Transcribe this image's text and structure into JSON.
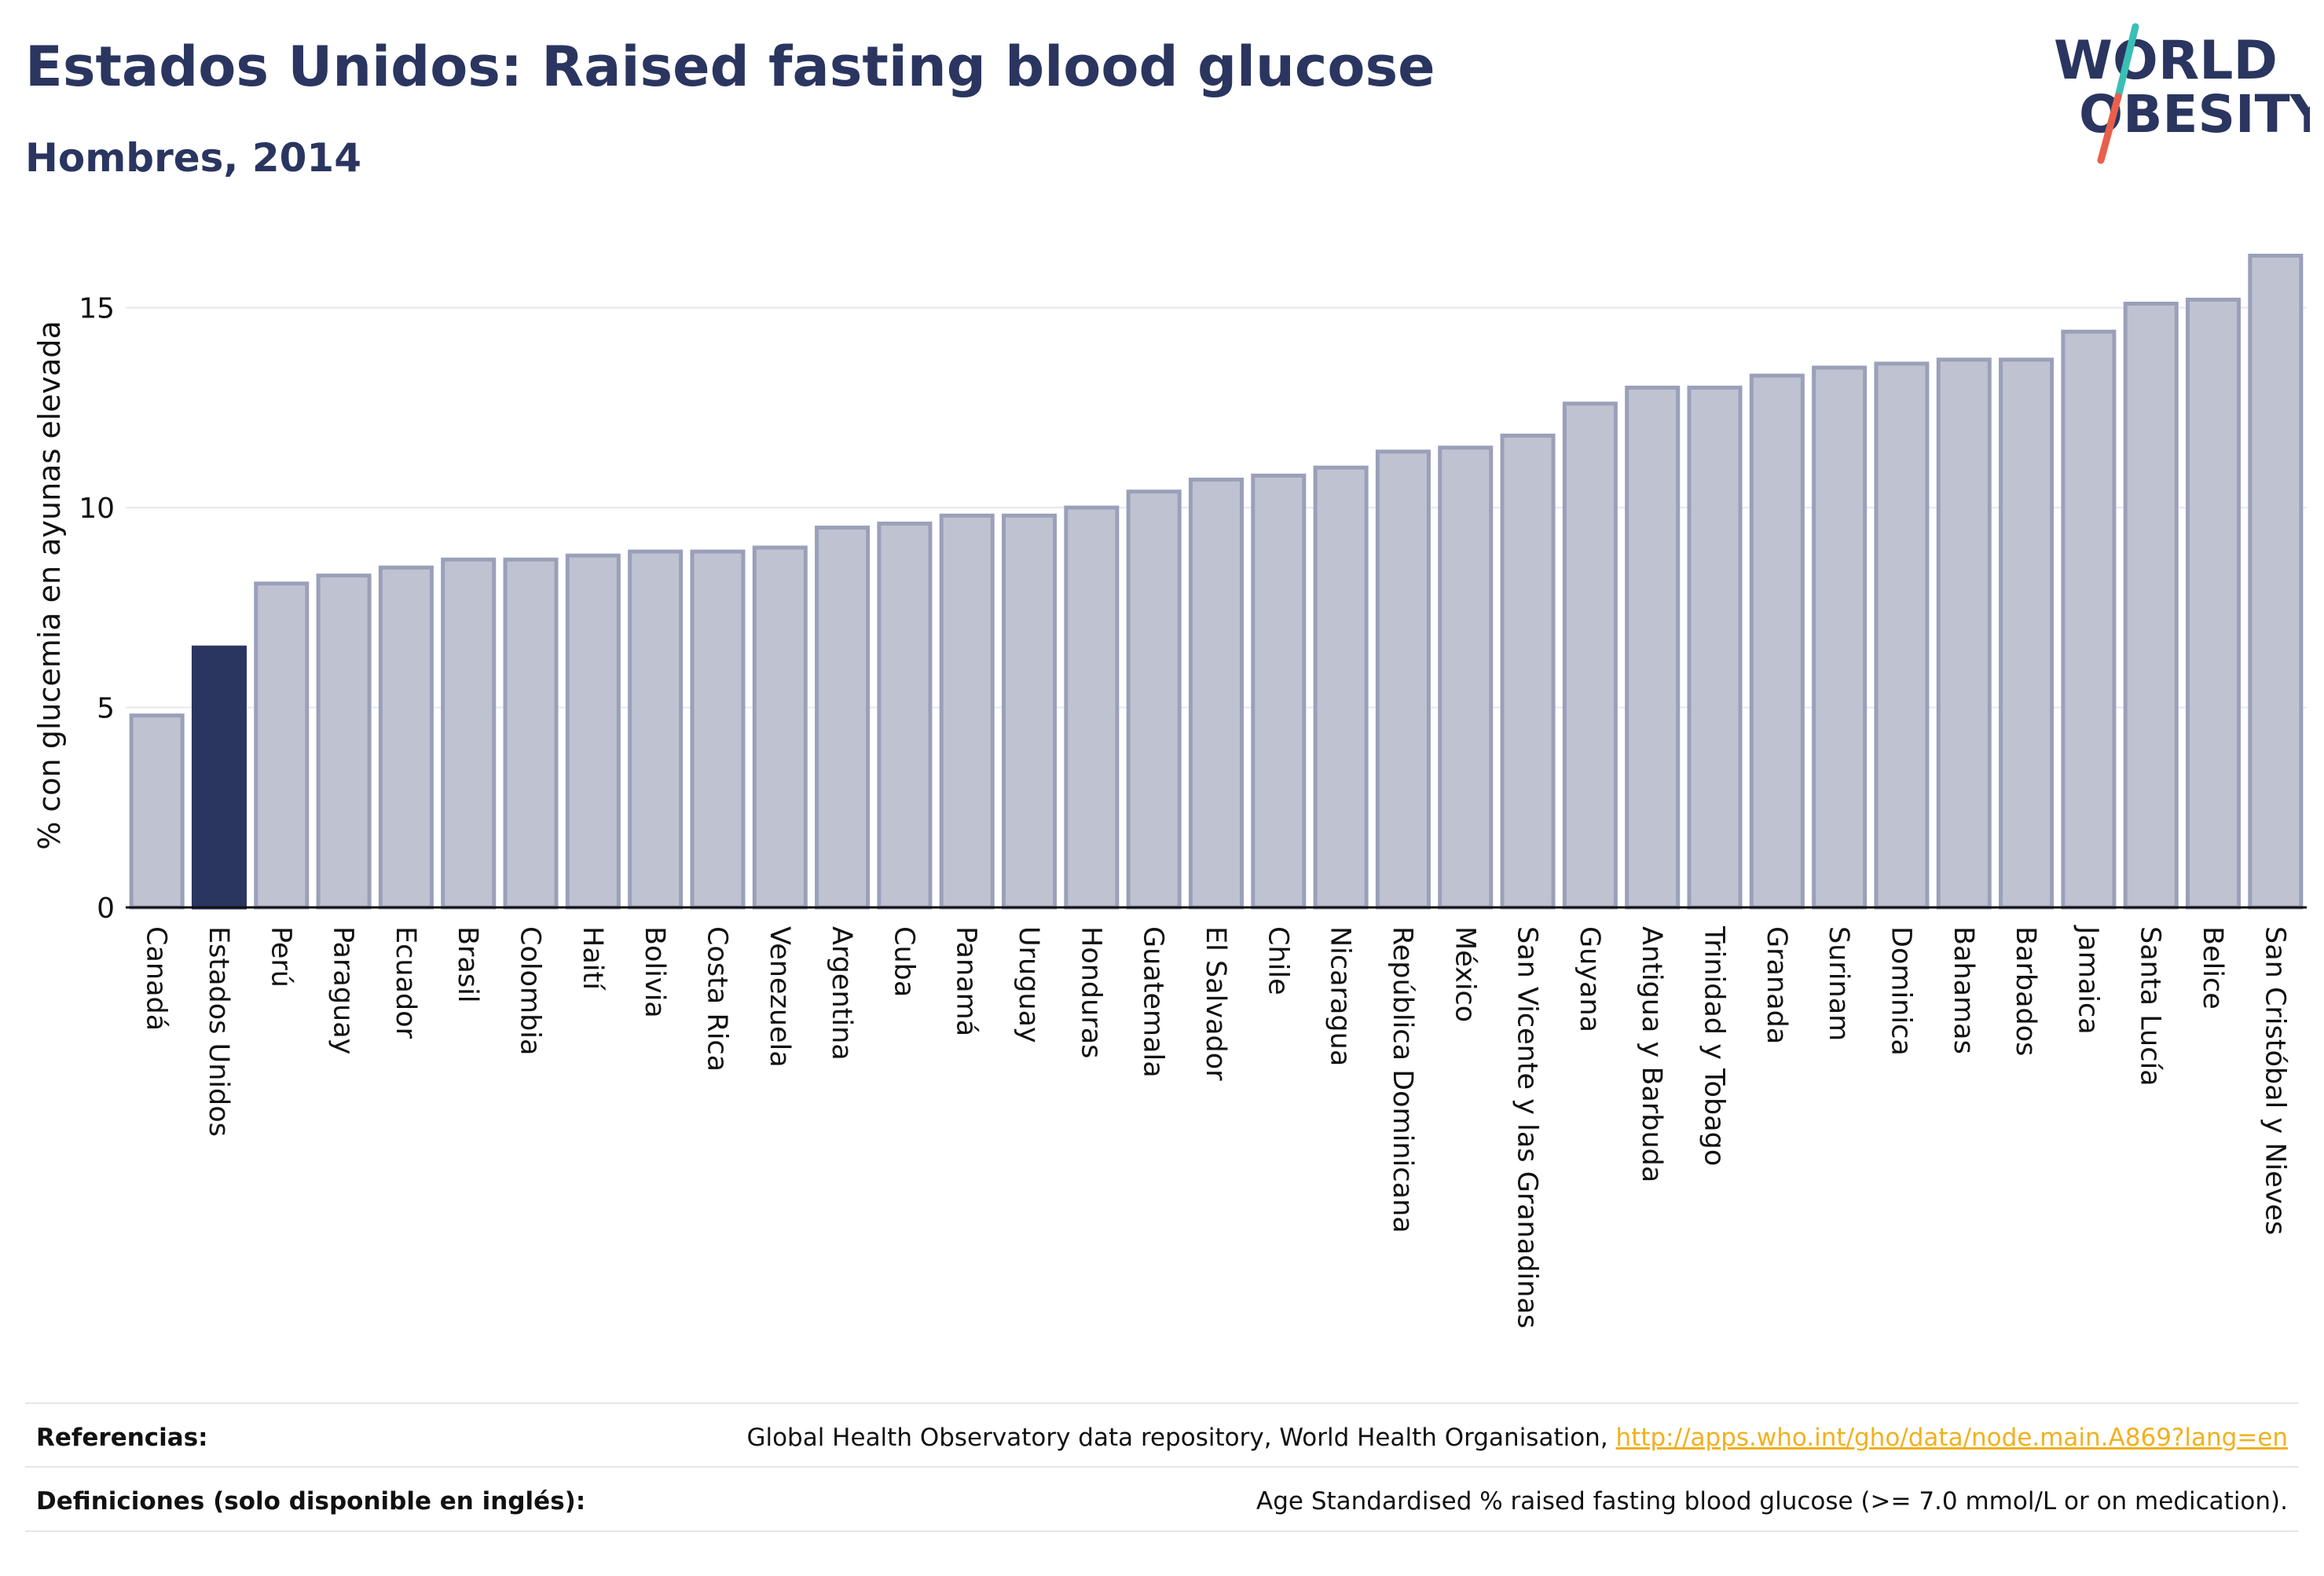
{
  "header": {
    "title": "Estados Unidos: Raised fasting blood glucose",
    "subtitle": "Hombres, 2014"
  },
  "logo": {
    "line1": "WORLD",
    "line2": "OBESITY"
  },
  "colors": {
    "highlight": "#2a3560",
    "bar_fill": "#bfc3d1",
    "bar_stroke": "#9aa0b9",
    "grid": "#e6e8ee",
    "text": "#2a3560",
    "logo_teal": "#3bbfb5",
    "logo_red": "#e8604c",
    "link": "#f2b01e"
  },
  "chart_data": {
    "type": "bar",
    "ylabel": "% con glucemia en ayunas elevada",
    "ylim": [
      0,
      16.8
    ],
    "yticks": [
      0,
      5,
      10,
      15
    ],
    "highlight": "Estados Unidos",
    "categories": [
      "Canadá",
      "Estados Unidos",
      "Perú",
      "Paraguay",
      "Ecuador",
      "Brasil",
      "Colombia",
      "Haití",
      "Bolivia",
      "Costa Rica",
      "Venezuela",
      "Argentina",
      "Cuba",
      "Panamá",
      "Uruguay",
      "Honduras",
      "Guatemala",
      "El Salvador",
      "Chile",
      "Nicaragua",
      "República Dominicana",
      "México",
      "San Vicente y las Granadinas",
      "Guyana",
      "Antigua y Barbuda",
      "Trinidad y Tobago",
      "Granada",
      "Surinam",
      "Dominica",
      "Bahamas",
      "Barbados",
      "Jamaica",
      "Santa Lucía",
      "Belice",
      "San Cristóbal y Nieves"
    ],
    "values": [
      4.8,
      6.5,
      8.1,
      8.3,
      8.5,
      8.7,
      8.7,
      8.8,
      8.9,
      8.9,
      9.0,
      9.5,
      9.6,
      9.8,
      9.8,
      10.0,
      10.4,
      10.7,
      10.8,
      11.0,
      11.4,
      11.5,
      11.8,
      12.6,
      13.0,
      13.0,
      13.3,
      13.5,
      13.6,
      13.7,
      13.7,
      14.4,
      15.1,
      15.2,
      16.3
    ]
  },
  "footer": {
    "references_label": "Referencias:",
    "references_text": "Global Health Observatory data repository, World Health Organisation,",
    "references_link": "http://apps.who.int/gho/data/node.main.A869?lang=en",
    "definitions_label": "Definiciones (solo disponible en inglés):",
    "definitions_text": "Age Standardised % raised fasting blood glucose (>= 7.0 mmol/L or on medication)."
  }
}
